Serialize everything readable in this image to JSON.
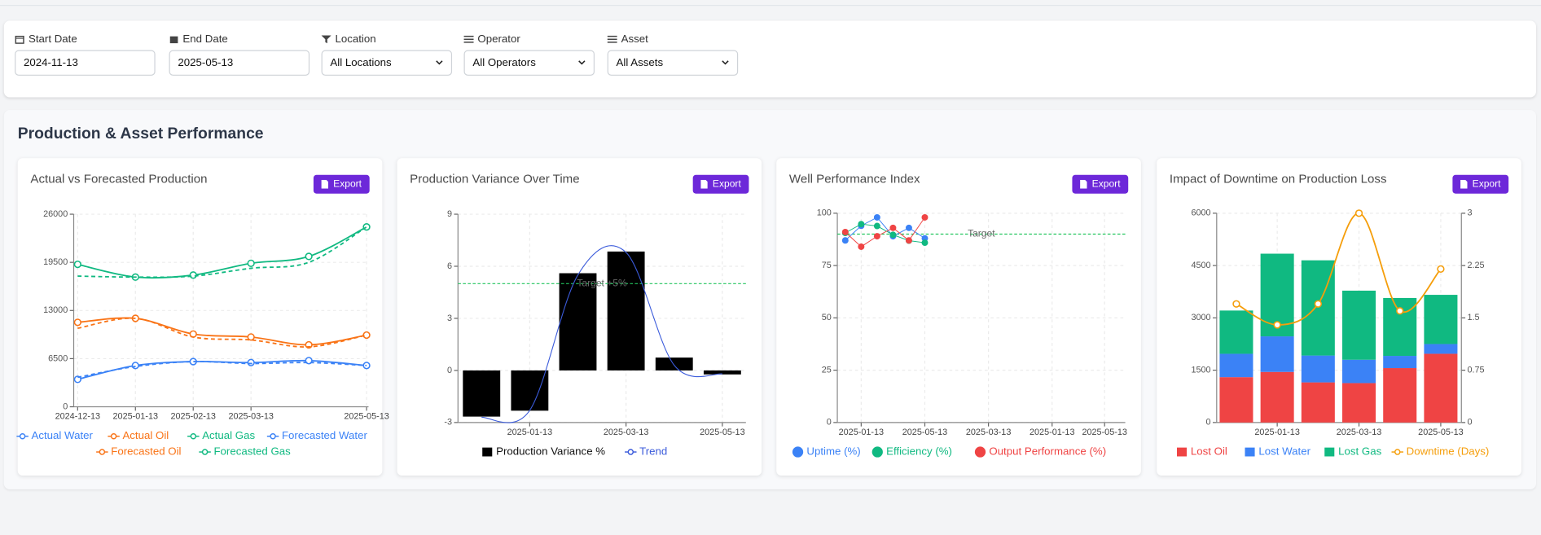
{
  "filters": [
    {
      "label": "Start Date",
      "value": "2024-11-13"
    },
    {
      "label": "End Date",
      "value": "2025-05-13"
    },
    {
      "label": "Location",
      "value": "All Locations"
    },
    {
      "label": "Operator",
      "value": "All Operators"
    },
    {
      "label": "Asset",
      "value": "All Assets"
    }
  ],
  "section_title": "Production & Asset Performance",
  "chart_data": [
    {
      "type": "line",
      "title": "Actual vs Forecasted Production",
      "button": "Export",
      "smooth": true,
      "grid": true,
      "categories": [
        "2024-12-13",
        "2025-01-13",
        "2025-02-13",
        "2025-03-13",
        null,
        "2025-05-13"
      ],
      "ylim": [
        0,
        26000
      ],
      "yticks": [
        0,
        6500,
        13000,
        19500,
        26000
      ],
      "series": [
        {
          "name": "Actual Water",
          "color": "#3b82f6",
          "values": [
            3700,
            5570,
            6100,
            5970,
            6230,
            5570
          ]
        },
        {
          "name": "Actual Oil",
          "color": "#f97316",
          "values": [
            11400,
            11940,
            9820,
            9420,
            8360,
            9680
          ]
        },
        {
          "name": "Actual Gas",
          "color": "#10b981",
          "values": [
            19230,
            17510,
            17780,
            19370,
            20300,
            24280
          ]
        },
        {
          "name": "Forecasted Water",
          "color": "#3b82f6",
          "dashed": true,
          "values": [
            3980,
            5440,
            6100,
            5840,
            5970,
            5570
          ]
        },
        {
          "name": "Forecasted Oil",
          "color": "#f97316",
          "dashed": true,
          "values": [
            10600,
            11940,
            9420,
            9020,
            8090,
            9680
          ]
        },
        {
          "name": "Forecasted Gas",
          "color": "#10b981",
          "dashed": true,
          "values": [
            17640,
            17510,
            17640,
            18700,
            19500,
            24280
          ]
        }
      ]
    },
    {
      "type": "bar",
      "title": "Production Variance Over Time",
      "button": "Export",
      "grid": true,
      "categories": [
        null,
        "2025-01-13",
        null,
        "2025-03-13",
        null,
        "2025-05-13"
      ],
      "ylim": [
        -3,
        9
      ],
      "yticks": [
        -3,
        0,
        3,
        6,
        9
      ],
      "target": {
        "value": 5,
        "label": "Target +5%",
        "color": "#22c55e"
      },
      "series": [
        {
          "name": "Production Variance %",
          "color": "#000000",
          "values": [
            -2.66,
            -2.32,
            5.6,
            6.85,
            0.74,
            -0.23
          ]
        },
        {
          "name": "Trend",
          "type": "line",
          "smooth": true,
          "color": "#3b5bdb",
          "values": [
            -2.7,
            -2.3,
            5.5,
            6.8,
            0.3,
            -0.2
          ]
        }
      ]
    },
    {
      "type": "line",
      "title": "Well Performance Index",
      "button": "Export",
      "grid": true,
      "x": [
        0,
        1,
        2,
        3,
        4,
        5
      ],
      "xlim": [
        -0.5,
        17.6
      ],
      "xticks": [
        {
          "value": 1,
          "label": "2025-01-13"
        },
        {
          "value": 5,
          "label": "2025-05-13"
        },
        {
          "value": 9,
          "label": "2025-03-13"
        },
        {
          "value": 13,
          "label": "2025-01-13"
        },
        {
          "value": 16.3,
          "label": "2025-05-13"
        }
      ],
      "ylim": [
        0,
        100
      ],
      "yticks": [
        0,
        25,
        50,
        75,
        100
      ],
      "target": {
        "value": 90,
        "label": "Target",
        "color": "#22c55e"
      },
      "series": [
        {
          "name": "Uptime (%)",
          "color": "#3b82f6",
          "values": [
            87,
            94,
            98,
            89,
            93,
            88
          ]
        },
        {
          "name": "Efficiency (%)",
          "color": "#10b981",
          "values": [
            90.6,
            94.8,
            93.9,
            89.7,
            86.9,
            85.9
          ]
        },
        {
          "name": "Output Performance (%)",
          "color": "#ef4444",
          "values": [
            91,
            84,
            89,
            93,
            87,
            98
          ]
        }
      ]
    },
    {
      "type": "bar",
      "title": "Impact of Downtime on Production Loss",
      "button": "Export",
      "stacked": true,
      "grid": true,
      "categories": [
        null,
        "2025-01-13",
        null,
        "2025-03-13",
        null,
        "2025-05-13"
      ],
      "ylim": [
        0,
        6000
      ],
      "yticks": [
        0,
        1500,
        3000,
        4500,
        6000
      ],
      "y2lim": [
        0,
        3
      ],
      "y2ticks": [
        0,
        0.75,
        1.5,
        2.25,
        3
      ],
      "series": [
        {
          "name": "Lost Oil",
          "color": "#ef4444",
          "values": [
            1300,
            1450,
            1150,
            1130,
            1560,
            1970
          ]
        },
        {
          "name": "Lost Water",
          "color": "#3b82f6",
          "values": [
            670,
            1020,
            770,
            670,
            350,
            280
          ]
        },
        {
          "name": "Lost Gas",
          "color": "#10b981",
          "values": [
            1240,
            2370,
            2730,
            1980,
            1660,
            1410
          ]
        },
        {
          "name": "Downtime (Days)",
          "type": "line",
          "axis": "y2",
          "smooth": true,
          "color": "#f59e0b",
          "values": [
            1.7,
            1.4,
            1.7,
            3.0,
            1.6,
            2.2
          ]
        }
      ]
    }
  ]
}
